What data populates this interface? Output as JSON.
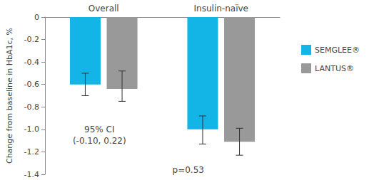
{
  "chart_data": {
    "type": "bar",
    "categories": [
      "Overall",
      "Insulin-naïve"
    ],
    "y_label": "Change from baseline in HbA1c, %",
    "series": [
      {
        "name": "SEMGLEE®",
        "color": "#12b5e5",
        "values": [
          -0.6,
          -1.0
        ],
        "error_bars": [
          [
            -0.7,
            -0.5
          ],
          [
            -1.13,
            -0.88
          ]
        ]
      },
      {
        "name": "LANTUS®",
        "color": "#999999",
        "values": [
          -0.64,
          -1.11
        ],
        "error_bars": [
          [
            -0.75,
            -0.48
          ],
          [
            -1.23,
            -0.99
          ]
        ]
      }
    ],
    "ylim": [
      -1.4,
      0
    ],
    "yticks": [
      -1.4,
      -1.2,
      {
        "value": -1,
        "label": "-1.0"
      },
      -0.8,
      -0.6,
      -0.4,
      -0.2,
      0
    ],
    "grid": false,
    "legend": "right",
    "annotations": [
      {
        "category": "Overall",
        "text": [
          "95% CI",
          "(-0.10, 0.22)"
        ]
      },
      {
        "category": "Insulin-naïve",
        "text": [
          "p=0.53"
        ]
      }
    ]
  }
}
